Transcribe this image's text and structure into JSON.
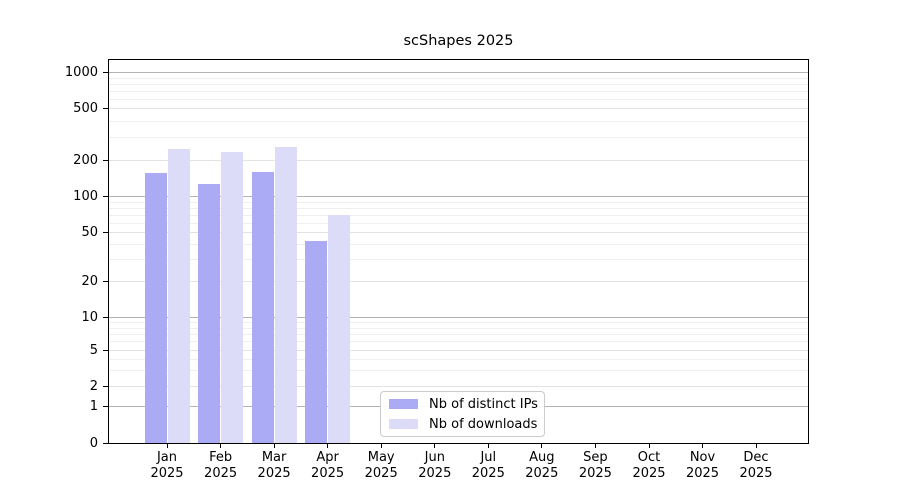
{
  "chart_data": {
    "type": "bar",
    "title": "scShapes 2025",
    "x": {
      "months": [
        "Jan",
        "Feb",
        "Mar",
        "Apr",
        "May",
        "Jun",
        "Jul",
        "Aug",
        "Sep",
        "Oct",
        "Nov",
        "Dec"
      ],
      "year": "2025"
    },
    "series": [
      {
        "name": "Nb of distinct IPs",
        "color": "#ababf5",
        "values": [
          155,
          125,
          160,
          42,
          0,
          0,
          0,
          0,
          0,
          0,
          0,
          0
        ]
      },
      {
        "name": "Nb of downloads",
        "color": "#dcdcf8",
        "values": [
          245,
          230,
          250,
          70,
          0,
          0,
          0,
          0,
          0,
          0,
          0,
          0
        ]
      }
    ],
    "y_axis": {
      "scale": "symlog",
      "ticks": [
        0,
        1,
        2,
        5,
        10,
        20,
        50,
        100,
        200,
        500,
        1000
      ],
      "major_grid_values": [
        1,
        10,
        100,
        1000
      ],
      "range": [
        0,
        1340
      ],
      "grid": true
    },
    "legend": {
      "position": "bottom-center"
    },
    "colors": {
      "grid_major": "#b3b3b3",
      "grid_mid": "#e2e2e2",
      "grid_minor": "#efefef",
      "axis": "#000000",
      "background": "#ffffff"
    }
  }
}
